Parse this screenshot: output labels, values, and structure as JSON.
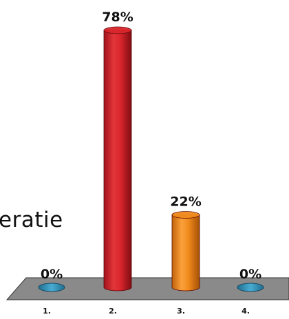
{
  "side_text": "eratie",
  "chart_data": {
    "type": "bar",
    "style": "3d-cylinder",
    "categories": [
      "1.",
      "2.",
      "3.",
      "4."
    ],
    "values": [
      0,
      78,
      22,
      0
    ],
    "data_labels": [
      "0%",
      "78%",
      "22%",
      "0%"
    ],
    "colors": [
      "#2f8fb5",
      "#d9262c",
      "#f08a1c",
      "#2f8fb5"
    ],
    "floor_color": "#8a8a8a",
    "ylim": [
      0,
      78
    ],
    "grid": false,
    "legend": "none"
  }
}
